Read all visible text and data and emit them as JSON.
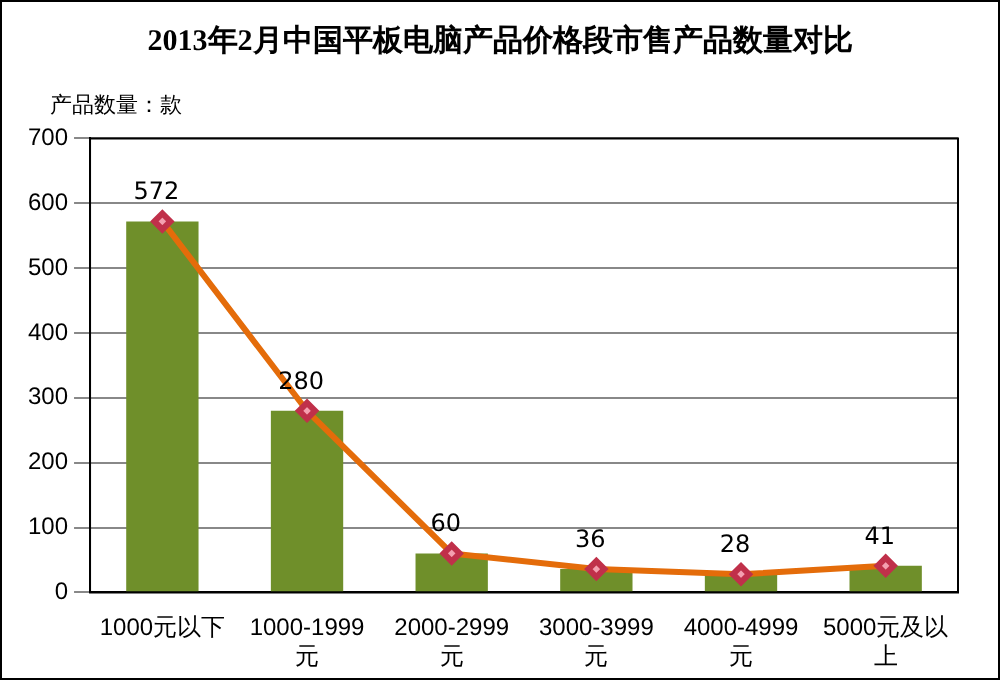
{
  "chart_data": {
    "type": "bar",
    "title": "2013年2月中国平板电脑产品价格段市售产品数量对比",
    "ylabel": "产品数量：款",
    "categories": [
      "1000元以下",
      "1000-1999元",
      "2000-2999元",
      "3000-3999元",
      "4000-4999元",
      "5000元及以上"
    ],
    "series": [
      {
        "color": "#6f8f2a",
        "values": [
          572,
          280,
          60,
          36,
          28,
          41
        ]
      },
      {
        "type": "line",
        "color": "#e46c0a",
        "values": [
          572,
          280,
          60,
          36,
          28,
          41
        ],
        "value_labels": [
          "572",
          "280",
          "60",
          "36",
          "28",
          "41"
        ]
      }
    ],
    "ylim": [
      0,
      700
    ],
    "yticks": [
      0,
      100,
      200,
      300,
      400,
      500,
      600,
      700
    ],
    "grid": "y",
    "legend": false,
    "marker": "diamond",
    "line_style": "solid"
  }
}
